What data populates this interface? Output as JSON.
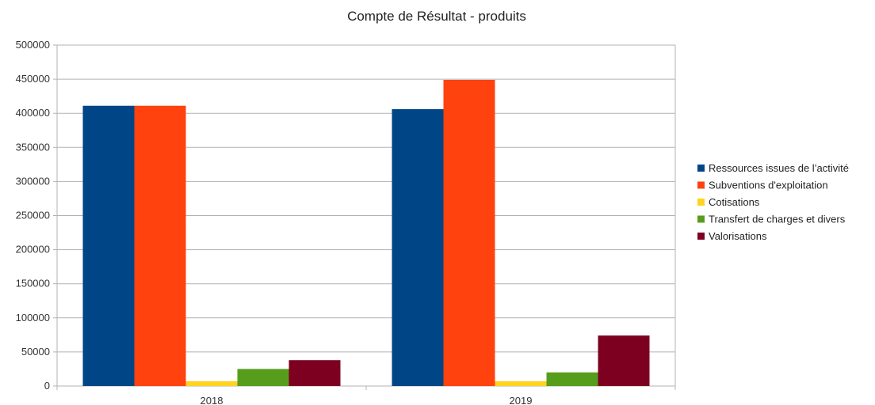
{
  "chart_data": {
    "type": "bar",
    "title": "Compte de Résultat - produits",
    "categories": [
      "2018",
      "2019"
    ],
    "ylim": [
      0,
      500000
    ],
    "yticks": [
      0,
      50000,
      100000,
      150000,
      200000,
      250000,
      300000,
      350000,
      400000,
      450000,
      500000
    ],
    "grid": true,
    "legend_position": "right",
    "series": [
      {
        "name": "Ressources issues de l’activité",
        "color": "#004586",
        "values": [
          411000,
          406000
        ]
      },
      {
        "name": "Subventions d'exploitation",
        "color": "#ff420e",
        "values": [
          411000,
          449000
        ]
      },
      {
        "name": "Cotisations",
        "color": "#ffd320",
        "values": [
          7000,
          7000
        ]
      },
      {
        "name": "Transfert de charges et divers",
        "color": "#579d1c",
        "values": [
          25000,
          20000
        ]
      },
      {
        "name": "Valorisations",
        "color": "#7e0021",
        "values": [
          38000,
          74000
        ]
      }
    ]
  }
}
